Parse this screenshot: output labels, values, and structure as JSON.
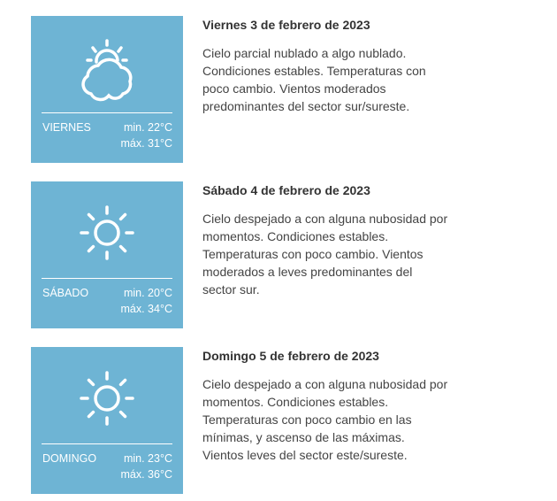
{
  "days": [
    {
      "name": "VIERNES",
      "min": "min. 22°C",
      "max": "máx. 31°C",
      "icon": "partly-cloudy-icon",
      "title": "Viernes 3 de febrero de 2023",
      "lines": [
        "Cielo parcial nublado a algo nublado.",
        "Condiciones estables. Temperaturas con",
        "poco cambio. Vientos moderados",
        "predominantes del sector sur/sureste."
      ]
    },
    {
      "name": "SÁBADO",
      "min": "min. 20°C",
      "max": "máx. 34°C",
      "icon": "sun-icon",
      "title": "Sábado 4 de febrero de 2023",
      "lines": [
        "Cielo despejado a con alguna nubosidad por",
        "momentos. Condiciones estables.",
        "Temperaturas con poco cambio. Vientos",
        "moderados a leves predominantes del",
        "sector sur."
      ]
    },
    {
      "name": "DOMINGO",
      "min": "min. 23°C",
      "max": "máx. 36°C",
      "icon": "sun-icon",
      "title": "Domingo 5 de febrero de 2023",
      "lines": [
        "Cielo despejado a con alguna nubosidad por",
        "momentos. Condiciones estables.",
        "Temperaturas con poco cambio en las",
        "mínimas, y ascenso de las máximas.",
        "Vientos leves del sector este/sureste."
      ]
    }
  ],
  "colors": {
    "box": "#6eb4d4"
  }
}
